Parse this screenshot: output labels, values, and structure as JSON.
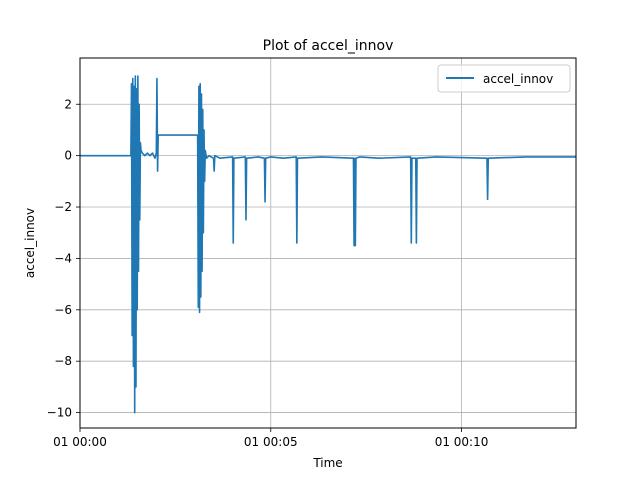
{
  "chart_data": {
    "type": "line",
    "title": "Plot of accel_innov",
    "xlabel": "Time",
    "ylabel": "accel_innov",
    "xlim_seconds": [
      0,
      780
    ],
    "ylim": [
      -10.6,
      3.8
    ],
    "x_ticks": [
      {
        "value": 0,
        "label": "01 00:00"
      },
      {
        "value": 300,
        "label": "01 00:05"
      },
      {
        "value": 600,
        "label": "01 00:10"
      }
    ],
    "y_ticks": [
      -10,
      -8,
      -6,
      -4,
      -2,
      0,
      2
    ],
    "y_tick_labels": [
      "−10",
      "−8",
      "−6",
      "−4",
      "−2",
      "0",
      "2"
    ],
    "grid": true,
    "legend_position": "upper right",
    "series": [
      {
        "name": "accel_innov",
        "color": "#1f77b4",
        "x": [
          0,
          80,
          81,
          82,
          83,
          84,
          85,
          86,
          87,
          88,
          89,
          90,
          91,
          92,
          93,
          94,
          95,
          96,
          98,
          102,
          106,
          110,
          114,
          118,
          120,
          121,
          122,
          123,
          125,
          130,
          150,
          180,
          185,
          186,
          187,
          188,
          189,
          190,
          191,
          192,
          193,
          194,
          195,
          196,
          197,
          199,
          203,
          210,
          211,
          212,
          220,
          240,
          241,
          242,
          260,
          261,
          262,
          280,
          290,
          291,
          292,
          300,
          320,
          340,
          341,
          342,
          380,
          430,
          431,
          432,
          433,
          434,
          440,
          470,
          520,
          521,
          522,
          528,
          529,
          530,
          560,
          640,
          641,
          642,
          700,
          780
        ],
        "y": [
          0,
          0.0,
          2.8,
          -7.0,
          3.0,
          -8.2,
          2.7,
          -10.0,
          3.1,
          -9.0,
          2.6,
          -6.0,
          3.1,
          -4.5,
          2.0,
          -2.5,
          0.5,
          0.2,
          0.1,
          0.0,
          0.1,
          0.0,
          0.1,
          -0.1,
          0.1,
          3.0,
          -0.6,
          0.8,
          0.8,
          0.8,
          0.8,
          0.8,
          0.8,
          -5.9,
          2.7,
          -6.1,
          2.8,
          -5.5,
          2.4,
          -4.5,
          1.8,
          -3.0,
          1.0,
          -1.0,
          0.2,
          -0.1,
          0.0,
          -0.1,
          -0.6,
          0.0,
          -0.1,
          -0.05,
          -3.4,
          -0.1,
          -0.05,
          -2.5,
          -0.1,
          -0.05,
          -0.1,
          -1.8,
          -0.1,
          -0.05,
          -0.1,
          -0.05,
          -3.4,
          -0.1,
          -0.05,
          -0.1,
          -3.5,
          -0.1,
          -3.5,
          -0.1,
          -0.05,
          -0.1,
          -0.05,
          -3.4,
          -0.1,
          -0.1,
          -3.4,
          -0.1,
          -0.05,
          -0.1,
          -1.7,
          -0.1,
          -0.05,
          -0.05
        ]
      }
    ]
  }
}
